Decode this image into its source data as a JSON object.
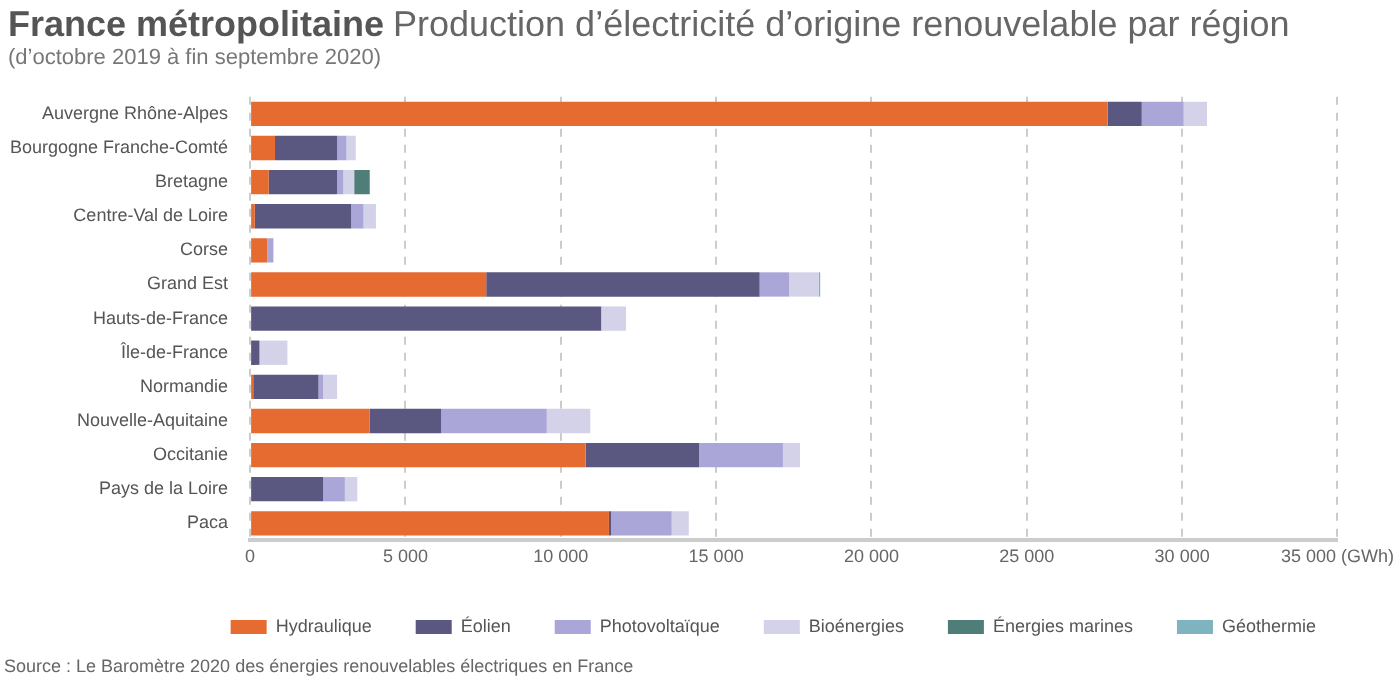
{
  "chart_data": {
    "type": "bar",
    "orientation": "horizontal",
    "stacked": true,
    "title": "France métropolitaine",
    "subtitle": "Production d’électricité d’origine renouvelable par région",
    "annotations": [
      "(d’octobre 2019 à fin septembre 2020)",
      "Source : Le Baromètre 2020 des énergies renouvelables électriques en France"
    ],
    "categories": [
      "Auvergne Rhône-Alpes",
      "Bourgogne Franche-Comté",
      "Bretagne",
      "Centre-Val de Loire",
      "Corse",
      "Grand Est",
      "Hauts-de-France",
      "Île-de-France",
      "Normandie",
      "Nouvelle-Aquitaine",
      "Occitanie",
      "Pays de la Loire",
      "Paca"
    ],
    "series": [
      {
        "name": "Hydraulique",
        "color": "#e56b30",
        "values": [
          27600,
          800,
          600,
          150,
          550,
          7600,
          null,
          null,
          100,
          3850,
          10800,
          null,
          11550
        ]
      },
      {
        "name": "Éolien",
        "color": "#5a5880",
        "values": [
          1100,
          2000,
          2200,
          3100,
          null,
          8800,
          11300,
          300,
          2100,
          2300,
          3650,
          2350,
          70
        ]
      },
      {
        "name": "Photovoltaïque",
        "color": "#aaa6d8",
        "values": [
          1350,
          300,
          200,
          400,
          200,
          950,
          null,
          null,
          150,
          3400,
          2700,
          700,
          1950
        ]
      },
      {
        "name": "Bioénergies",
        "color": "#d3d2e8",
        "values": [
          750,
          300,
          350,
          400,
          null,
          950,
          800,
          900,
          450,
          1400,
          550,
          400,
          550
        ]
      },
      {
        "name": "Énergies marines",
        "color": "#4f7d78",
        "values": [
          null,
          null,
          500,
          null,
          null,
          null,
          null,
          null,
          null,
          null,
          null,
          null,
          null
        ]
      },
      {
        "name": "Géothermie",
        "color": "#7fb3c0",
        "values": [
          null,
          null,
          null,
          null,
          null,
          50,
          null,
          null,
          null,
          null,
          null,
          null,
          null
        ]
      }
    ],
    "xlim": [
      0,
      35000
    ],
    "xticks": [
      0,
      {
        "value": 5000,
        "label": "5 000"
      },
      {
        "value": 10000,
        "label": "10 000"
      },
      {
        "value": 15000,
        "label": "15 000"
      },
      {
        "value": 20000,
        "label": "20 000"
      },
      {
        "value": 25000,
        "label": "25 000"
      },
      {
        "value": 30000,
        "label": "30 000"
      },
      {
        "value": 35000,
        "label": "35 000 (GWh)"
      }
    ],
    "grid": "x",
    "legend": "bottom"
  }
}
